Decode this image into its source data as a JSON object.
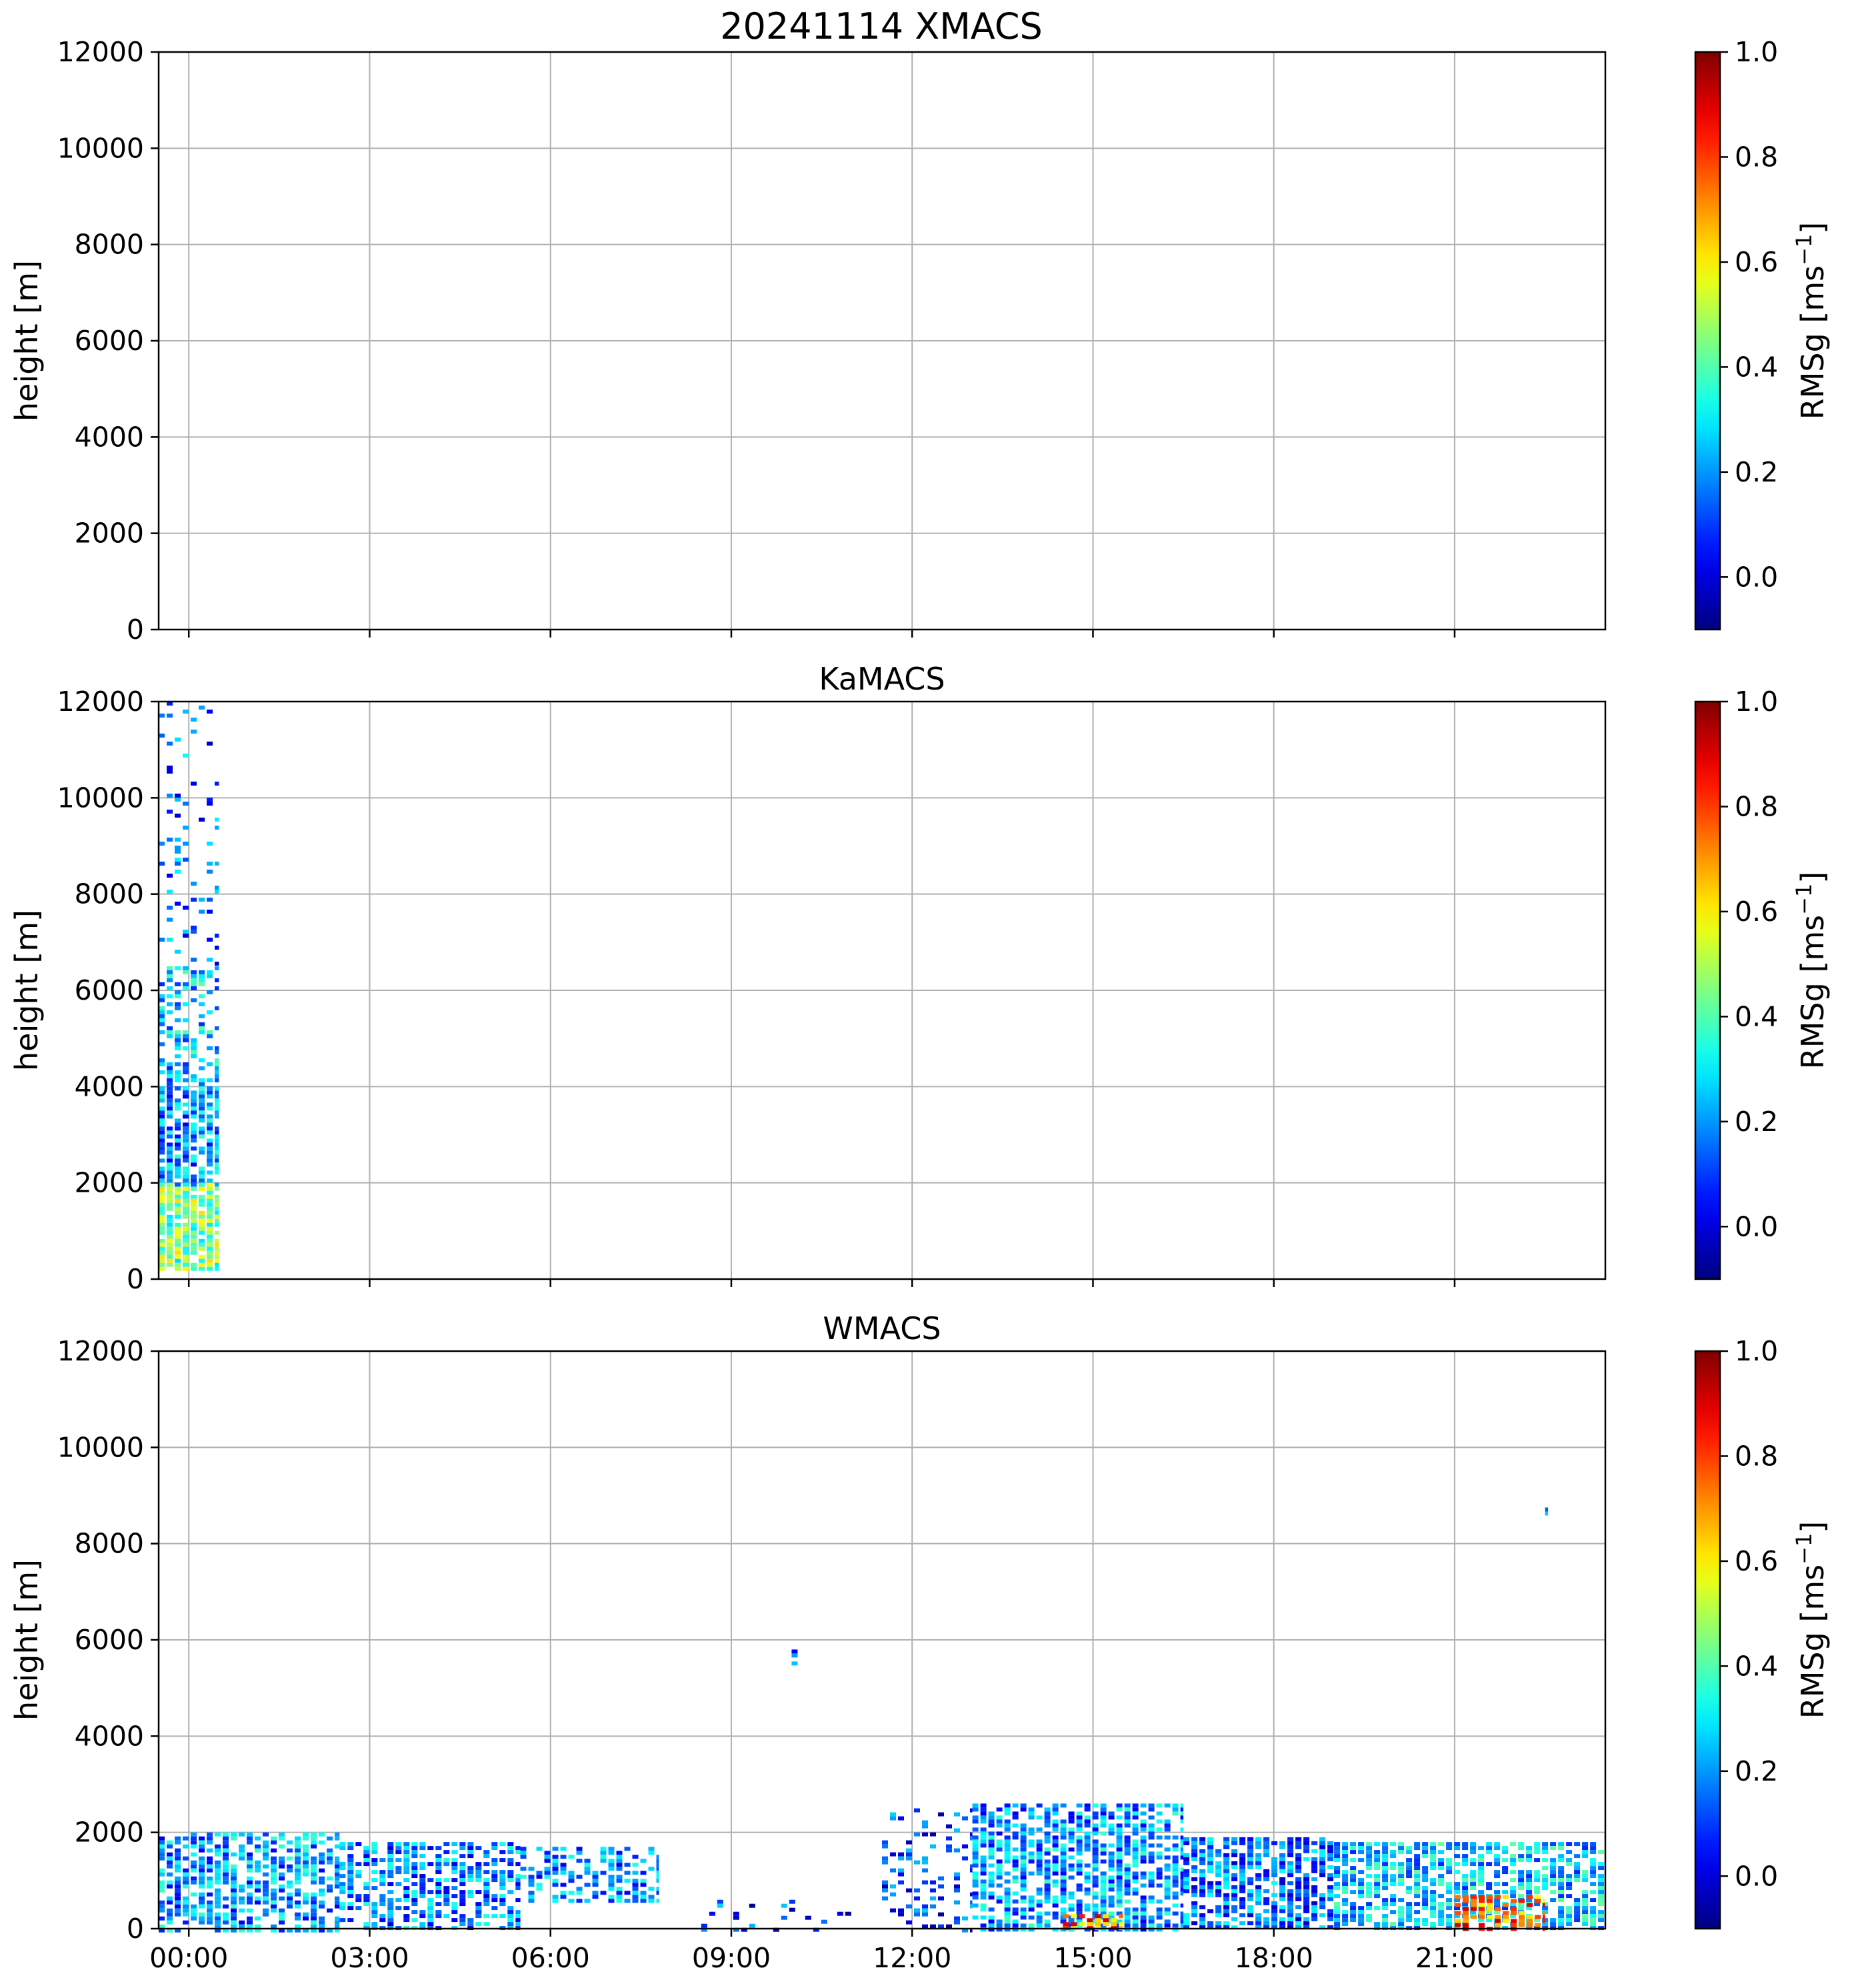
{
  "figure": {
    "title": "20241114 XMACS"
  },
  "colorbar": {
    "label": "RMSg [ms",
    "label_sup": "−1",
    "label_close": "]",
    "range": [
      -0.1,
      1.0
    ],
    "ticks": [
      "0.0",
      "0.2",
      "0.4",
      "0.6",
      "0.8",
      "1.0"
    ],
    "tick_values": [
      0.0,
      0.2,
      0.4,
      0.6,
      0.8,
      1.0
    ],
    "colormap": "jet",
    "colors": [
      "#00007f",
      "#0000ff",
      "#007fff",
      "#00ffff",
      "#7fff7f",
      "#ffff00",
      "#ff7f00",
      "#ff0000",
      "#7f0000"
    ]
  },
  "chart_data": [
    {
      "type": "heatmap",
      "title": "20241114 XMACS",
      "xlabel": "",
      "ylabel": "height [m]",
      "xlim_hours": [
        -0.5,
        23.5
      ],
      "ylim": [
        0,
        12000
      ],
      "yticks": [
        0,
        2000,
        4000,
        6000,
        8000,
        10000,
        12000
      ],
      "ytick_labels": [
        "0",
        "2000",
        "4000",
        "6000",
        "8000",
        "10000",
        "12000"
      ],
      "xticks_hours": [
        0,
        3,
        6,
        9,
        12,
        15,
        18,
        21
      ],
      "xtick_labels": [],
      "grid": true,
      "regions": []
    },
    {
      "type": "heatmap",
      "title": "KaMACS",
      "xlabel": "",
      "ylabel": "height [m]",
      "xlim_hours": [
        -0.5,
        23.5
      ],
      "ylim": [
        0,
        12000
      ],
      "yticks": [
        0,
        2000,
        4000,
        6000,
        8000,
        10000,
        12000
      ],
      "ytick_labels": [
        "0",
        "2000",
        "4000",
        "6000",
        "8000",
        "10000",
        "12000"
      ],
      "xticks_hours": [
        0,
        3,
        6,
        9,
        12,
        15,
        18,
        21
      ],
      "xtick_labels": [],
      "grid": true,
      "regions": [
        {
          "t0": -0.5,
          "t1": 0.5,
          "h0": 200,
          "h1": 2000,
          "value": 0.45,
          "density": 0.9
        },
        {
          "t0": -0.5,
          "t1": 0.5,
          "h0": 2000,
          "h1": 4000,
          "value": 0.2,
          "density": 0.8
        },
        {
          "t0": -0.5,
          "t1": 0.5,
          "h0": 4000,
          "h1": 6500,
          "value": 0.25,
          "density": 0.45
        },
        {
          "t0": -0.5,
          "t1": 0.5,
          "h0": 6500,
          "h1": 12000,
          "value": 0.15,
          "density": 0.12
        }
      ]
    },
    {
      "type": "heatmap",
      "title": "WMACS",
      "xlabel": "",
      "ylabel": "height [m]",
      "xlim_hours": [
        -0.5,
        23.5
      ],
      "ylim": [
        0,
        12000
      ],
      "yticks": [
        0,
        2000,
        4000,
        6000,
        8000,
        10000,
        12000
      ],
      "ytick_labels": [
        "0",
        "2000",
        "4000",
        "6000",
        "8000",
        "10000",
        "12000"
      ],
      "xticks_hours": [
        0,
        3,
        6,
        9,
        12,
        15,
        18,
        21
      ],
      "xtick_labels": [
        "00:00",
        "03:00",
        "06:00",
        "09:00",
        "12:00",
        "15:00",
        "18:00",
        "21:00"
      ],
      "grid": true,
      "regions": [
        {
          "t0": -0.5,
          "t1": 2.5,
          "h0": 0,
          "h1": 2000,
          "value": 0.2,
          "density": 0.7
        },
        {
          "t0": 2.5,
          "t1": 5.5,
          "h0": 0,
          "h1": 1800,
          "value": 0.18,
          "density": 0.6
        },
        {
          "t0": 5.5,
          "t1": 7.8,
          "h0": 600,
          "h1": 1700,
          "value": 0.18,
          "density": 0.5
        },
        {
          "t0": 8.5,
          "t1": 11.0,
          "h0": 0,
          "h1": 600,
          "value": 0.1,
          "density": 0.12
        },
        {
          "t0": 10.0,
          "t1": 10.1,
          "h0": 5500,
          "h1": 5800,
          "value": 0.1,
          "density": 0.9
        },
        {
          "t0": 11.5,
          "t1": 13.0,
          "h0": 0,
          "h1": 2500,
          "value": 0.1,
          "density": 0.2
        },
        {
          "t0": 13.0,
          "t1": 16.5,
          "h0": 0,
          "h1": 2600,
          "value": 0.2,
          "density": 0.7
        },
        {
          "t0": 14.5,
          "t1": 15.5,
          "h0": 0,
          "h1": 300,
          "value": 0.75,
          "density": 0.8
        },
        {
          "t0": 16.5,
          "t1": 19.0,
          "h0": 0,
          "h1": 1900,
          "value": 0.15,
          "density": 0.7
        },
        {
          "t0": 19.0,
          "t1": 23.5,
          "h0": 0,
          "h1": 1800,
          "value": 0.25,
          "density": 0.7
        },
        {
          "t0": 21.0,
          "t1": 22.5,
          "h0": 0,
          "h1": 700,
          "value": 0.75,
          "density": 0.6
        },
        {
          "t0": 22.5,
          "t1": 22.55,
          "h0": 8600,
          "h1": 8750,
          "value": 0.1,
          "density": 0.9
        }
      ]
    }
  ]
}
